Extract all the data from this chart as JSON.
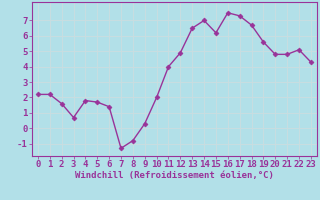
{
  "x": [
    0,
    1,
    2,
    3,
    4,
    5,
    6,
    7,
    8,
    9,
    10,
    11,
    12,
    13,
    14,
    15,
    16,
    17,
    18,
    19,
    20,
    21,
    22,
    23
  ],
  "y": [
    2.2,
    2.2,
    1.6,
    0.7,
    1.8,
    1.7,
    1.4,
    -1.3,
    -0.8,
    0.3,
    2.0,
    4.0,
    4.9,
    6.5,
    7.0,
    6.2,
    7.5,
    7.3,
    6.7,
    5.6,
    4.8,
    4.8,
    5.1,
    4.3
  ],
  "line_color": "#993399",
  "marker": "D",
  "marker_size": 2.5,
  "bg_color": "#b2e0e8",
  "grid_color": "#c8dde0",
  "xlabel": "Windchill (Refroidissement éolien,°C)",
  "xlabel_color": "#993399",
  "tick_color": "#993399",
  "spine_color": "#993399",
  "ylim": [
    -1.8,
    8.2
  ],
  "yticks": [
    -1,
    0,
    1,
    2,
    3,
    4,
    5,
    6,
    7
  ],
  "xlim": [
    -0.5,
    23.5
  ],
  "xticks": [
    0,
    1,
    2,
    3,
    4,
    5,
    6,
    7,
    8,
    9,
    10,
    11,
    12,
    13,
    14,
    15,
    16,
    17,
    18,
    19,
    20,
    21,
    22,
    23
  ],
  "line_width": 1.0,
  "font_size": 6.5,
  "xlabel_fontsize": 6.5
}
